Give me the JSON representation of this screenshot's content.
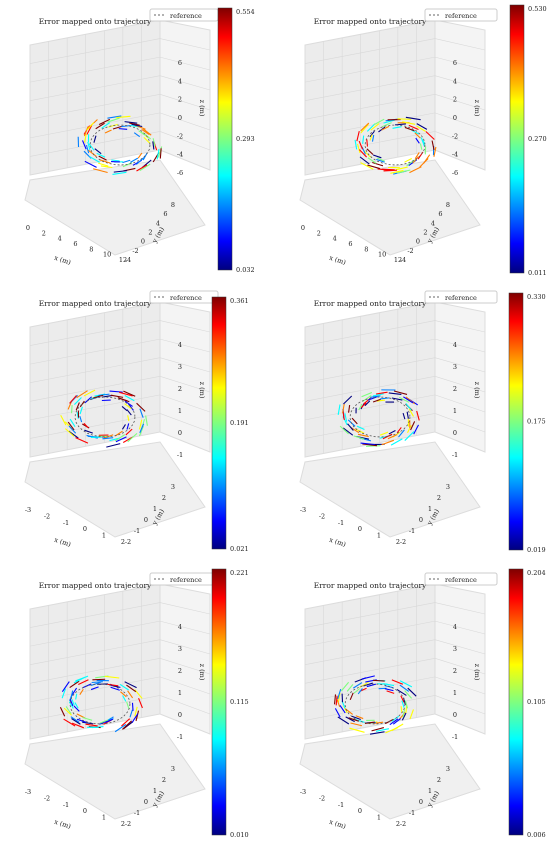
{
  "colormap": [
    "#00007f",
    "#0000ff",
    "#007fff",
    "#00ffff",
    "#7fff7f",
    "#ffff00",
    "#ff7f00",
    "#ff0000",
    "#7f0000"
  ],
  "chart_data": [
    {
      "type": "line3d",
      "title": "Error mapped onto trajectory",
      "legend": "reference",
      "legend_position": "top-right",
      "xlabel": "x (m)",
      "ylabel": "y (m)",
      "zlabel": "z (m)",
      "xticks": [
        "0",
        "2",
        "4",
        "6",
        "8",
        "10",
        "12"
      ],
      "yticks": [
        "-4",
        "-2",
        "0",
        "2",
        "4",
        "6",
        "8"
      ],
      "zticks": [
        "-6",
        "-4",
        "-2",
        "0",
        "2",
        "4",
        "6"
      ],
      "colorbar": {
        "min": "0.032",
        "mid": "0.293",
        "max": "0.554"
      }
    },
    {
      "type": "line3d",
      "title": "Error mapped onto trajectory",
      "legend": "reference",
      "legend_position": "top-right",
      "xlabel": "x (m)",
      "ylabel": "y (m)",
      "zlabel": "z (m)",
      "xticks": [
        "0",
        "2",
        "4",
        "6",
        "8",
        "10",
        "12"
      ],
      "yticks": [
        "-4",
        "-2",
        "0",
        "2",
        "4",
        "6",
        "8"
      ],
      "zticks": [
        "-6",
        "-4",
        "-2",
        "0",
        "2",
        "4",
        "6"
      ],
      "colorbar": {
        "min": "0.011",
        "mid": "0.270",
        "max": "0.530"
      }
    },
    {
      "type": "line3d",
      "title": "Error mapped onto trajectory",
      "legend": "reference",
      "legend_position": "top-right",
      "xlabel": "x (m)",
      "ylabel": "y (m)",
      "zlabel": "z (m)",
      "xticks": [
        "-3",
        "-2",
        "-1",
        "0",
        "1",
        "2"
      ],
      "yticks": [
        "-2",
        "-1",
        "0",
        "1",
        "2",
        "3"
      ],
      "zticks": [
        "-1",
        "0",
        "1",
        "2",
        "3",
        "4"
      ],
      "colorbar": {
        "min": "0.021",
        "mid": "0.191",
        "max": "0.361"
      }
    },
    {
      "type": "line3d",
      "title": "Error mapped onto trajectory",
      "legend": "reference",
      "legend_position": "top-right",
      "xlabel": "x (m)",
      "ylabel": "y (m)",
      "zlabel": "z (m)",
      "xticks": [
        "-3",
        "-2",
        "-1",
        "0",
        "1",
        "2"
      ],
      "yticks": [
        "-2",
        "-1",
        "0",
        "1",
        "2",
        "3"
      ],
      "zticks": [
        "-1",
        "0",
        "1",
        "2",
        "3",
        "4"
      ],
      "colorbar": {
        "min": "0.019",
        "mid": "0.175",
        "max": "0.330"
      }
    },
    {
      "type": "line3d",
      "title": "Error mapped onto trajectory",
      "legend": "reference",
      "legend_position": "top-right",
      "xlabel": "x (m)",
      "ylabel": "y (m)",
      "zlabel": "z (m)",
      "xticks": [
        "-3",
        "-2",
        "-1",
        "0",
        "1",
        "2"
      ],
      "yticks": [
        "-2",
        "-1",
        "0",
        "1",
        "2",
        "3"
      ],
      "zticks": [
        "-1",
        "0",
        "1",
        "2",
        "3",
        "4"
      ],
      "colorbar": {
        "min": "0.010",
        "mid": "0.115",
        "max": "0.221"
      }
    },
    {
      "type": "line3d",
      "title": "Error mapped onto trajectory",
      "legend": "reference",
      "legend_position": "top-right",
      "xlabel": "x (m)",
      "ylabel": "y (m)",
      "zlabel": "z (m)",
      "xticks": [
        "-3",
        "-2",
        "-1",
        "0",
        "1",
        "2"
      ],
      "yticks": [
        "-2",
        "-1",
        "0",
        "1",
        "2",
        "3"
      ],
      "zticks": [
        "-1",
        "0",
        "1",
        "2",
        "3",
        "4"
      ],
      "colorbar": {
        "min": "0.006",
        "mid": "0.105",
        "max": "0.204"
      }
    }
  ]
}
